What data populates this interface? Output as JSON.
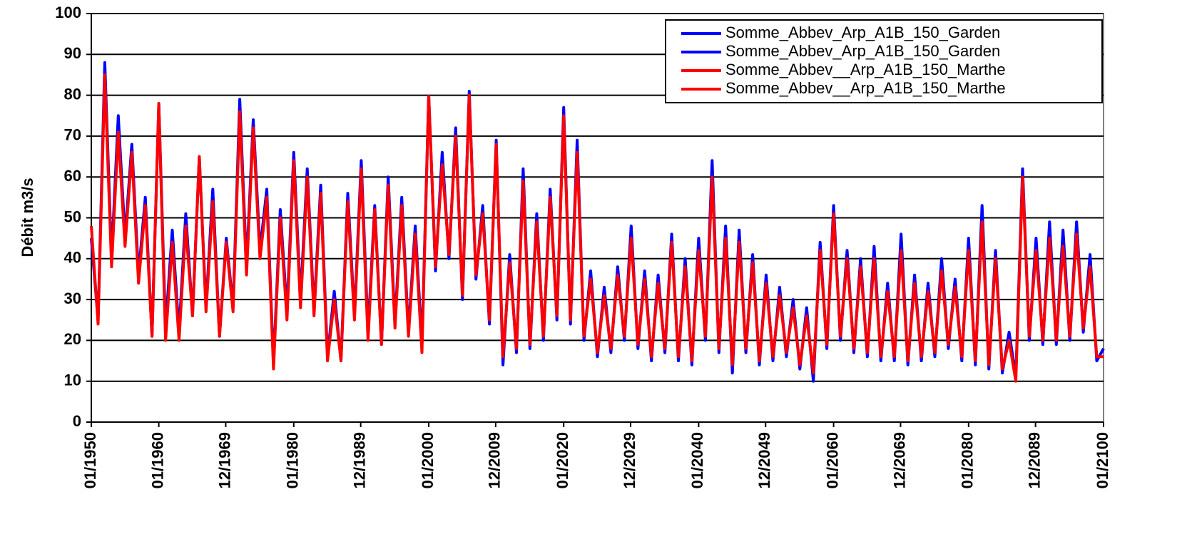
{
  "chart_data": {
    "type": "line",
    "ylabel": "Débit m3/s",
    "ylim": [
      0,
      100
    ],
    "yticks": [
      0,
      10,
      20,
      30,
      40,
      50,
      60,
      70,
      80,
      90,
      100
    ],
    "xlim": [
      1950,
      2100
    ],
    "xticks": [
      {
        "value": 1950,
        "label": "01/1950"
      },
      {
        "value": 1960,
        "label": "01/1960"
      },
      {
        "value": 1969.92,
        "label": "12/1969"
      },
      {
        "value": 1980,
        "label": "01/1980"
      },
      {
        "value": 1989.92,
        "label": "12/1989"
      },
      {
        "value": 2000,
        "label": "01/2000"
      },
      {
        "value": 2009.92,
        "label": "12/2009"
      },
      {
        "value": 2020,
        "label": "01/2020"
      },
      {
        "value": 2029.92,
        "label": "12/2029"
      },
      {
        "value": 2040,
        "label": "01/2040"
      },
      {
        "value": 2049.92,
        "label": "12/2049"
      },
      {
        "value": 2060,
        "label": "01/2060"
      },
      {
        "value": 2069.92,
        "label": "12/2069"
      },
      {
        "value": 2080,
        "label": "01/2080"
      },
      {
        "value": 2089.92,
        "label": "12/2089"
      },
      {
        "value": 2100,
        "label": "01/2100"
      }
    ],
    "grid": true,
    "legend": "upper right",
    "series": [
      {
        "name": "Somme_Abbev_Arp_A1B_150_Garden",
        "color": "#0000ff",
        "x": [
          1950,
          1951,
          1952,
          1953,
          1954,
          1955,
          1956,
          1957,
          1958,
          1959,
          1960,
          1961,
          1962,
          1963,
          1964,
          1965,
          1966,
          1967,
          1968,
          1969,
          1970,
          1971,
          1972,
          1973,
          1974,
          1975,
          1976,
          1977,
          1978,
          1979,
          1980,
          1981,
          1982,
          1983,
          1984,
          1985,
          1986,
          1987,
          1988,
          1989,
          1990,
          1991,
          1992,
          1993,
          1994,
          1995,
          1996,
          1997,
          1998,
          1999,
          2000
        ],
        "values": [
          45,
          25,
          88,
          40,
          75,
          45,
          68,
          36,
          55,
          21,
          78,
          23,
          47,
          22,
          51,
          26,
          65,
          28,
          57,
          21,
          45,
          28,
          79,
          38,
          74,
          42,
          57,
          14,
          52,
          27,
          66,
          30,
          62,
          27,
          58,
          16,
          32,
          15,
          56,
          26,
          64,
          22,
          53,
          19,
          60,
          24,
          55,
          22,
          48,
          19,
          80
        ]
      },
      {
        "name": "Somme_Abbev_Arp_A1B_150_Garden",
        "color": "#0000ff",
        "x": [
          2000,
          2001,
          2002,
          2003,
          2004,
          2005,
          2006,
          2007,
          2008,
          2009,
          2010,
          2011,
          2012,
          2013,
          2014,
          2015,
          2016,
          2017,
          2018,
          2019,
          2020,
          2021,
          2022,
          2023,
          2024,
          2025,
          2026,
          2027,
          2028,
          2029,
          2030,
          2031,
          2032,
          2033,
          2034,
          2035,
          2036,
          2037,
          2038,
          2039,
          2040,
          2041,
          2042,
          2043,
          2044,
          2045,
          2046,
          2047,
          2048,
          2049,
          2050,
          2051,
          2052,
          2053,
          2054,
          2055,
          2056,
          2057,
          2058,
          2059,
          2060,
          2061,
          2062,
          2063,
          2064,
          2065,
          2066,
          2067,
          2068,
          2069,
          2070,
          2071,
          2072,
          2073,
          2074,
          2075,
          2076,
          2077,
          2078,
          2079,
          2080,
          2081,
          2082,
          2083,
          2084,
          2085,
          2086,
          2087,
          2088,
          2089,
          2090,
          2091,
          2092,
          2093,
          2094,
          2095,
          2096,
          2097,
          2098,
          2099,
          2100
        ],
        "values": [
          80,
          37,
          66,
          40,
          72,
          30,
          81,
          35,
          53,
          24,
          69,
          14,
          41,
          17,
          62,
          18,
          51,
          20,
          57,
          25,
          77,
          24,
          69,
          20,
          37,
          16,
          33,
          17,
          38,
          20,
          48,
          18,
          37,
          15,
          36,
          17,
          46,
          15,
          40,
          14,
          45,
          20,
          64,
          17,
          48,
          12,
          47,
          17,
          41,
          14,
          36,
          15,
          33,
          16,
          30,
          13,
          28,
          10,
          44,
          18,
          53,
          20,
          42,
          17,
          40,
          16,
          43,
          15,
          34,
          15,
          46,
          14,
          36,
          15,
          34,
          16,
          40,
          18,
          35,
          15,
          45,
          14,
          53,
          13,
          42,
          12,
          22,
          11,
          62,
          20,
          45,
          19,
          49,
          19,
          47,
          20,
          49,
          22,
          41,
          15,
          18
        ]
      },
      {
        "name": "Somme_Abbev__Arp_A1B_150_Marthe",
        "color": "#ff0000",
        "x": [
          1950,
          1951,
          1952,
          1953,
          1954,
          1955,
          1956,
          1957,
          1958,
          1959,
          1960,
          1961,
          1962,
          1963,
          1964,
          1965,
          1966,
          1967,
          1968,
          1969,
          1970,
          1971,
          1972,
          1973,
          1974,
          1975,
          1976,
          1977,
          1978,
          1979,
          1980,
          1981,
          1982,
          1983,
          1984,
          1985,
          1986,
          1987,
          1988,
          1989,
          1990,
          1991,
          1992,
          1993,
          1994,
          1995,
          1996,
          1997,
          1998,
          1999,
          2000
        ],
        "values": [
          48,
          24,
          85,
          38,
          71,
          43,
          66,
          34,
          53,
          21,
          78,
          20,
          44,
          20,
          48,
          26,
          65,
          27,
          54,
          21,
          44,
          27,
          76,
          36,
          72,
          40,
          55,
          13,
          50,
          25,
          64,
          28,
          60,
          26,
          56,
          15,
          30,
          15,
          54,
          25,
          62,
          20,
          52,
          19,
          58,
          23,
          53,
          21,
          46,
          17,
          80
        ]
      },
      {
        "name": "Somme_Abbev__Arp_A1B_150_Marthe",
        "color": "#ff0000",
        "x": [
          2000,
          2001,
          2002,
          2003,
          2004,
          2005,
          2006,
          2007,
          2008,
          2009,
          2010,
          2011,
          2012,
          2013,
          2014,
          2015,
          2016,
          2017,
          2018,
          2019,
          2020,
          2021,
          2022,
          2023,
          2024,
          2025,
          2026,
          2027,
          2028,
          2029,
          2030,
          2031,
          2032,
          2033,
          2034,
          2035,
          2036,
          2037,
          2038,
          2039,
          2040,
          2041,
          2042,
          2043,
          2044,
          2045,
          2046,
          2047,
          2048,
          2049,
          2050,
          2051,
          2052,
          2053,
          2054,
          2055,
          2056,
          2057,
          2058,
          2059,
          2060,
          2061,
          2062,
          2063,
          2064,
          2065,
          2066,
          2067,
          2068,
          2069,
          2070,
          2071,
          2072,
          2073,
          2074,
          2075,
          2076,
          2077,
          2078,
          2079,
          2080,
          2081,
          2082,
          2083,
          2084,
          2085,
          2086,
          2087,
          2088,
          2089,
          2090,
          2091,
          2092,
          2093,
          2094,
          2095,
          2096,
          2097,
          2098,
          2099,
          2100
        ],
        "values": [
          80,
          38,
          63,
          41,
          70,
          31,
          80,
          36,
          51,
          25,
          68,
          16,
          39,
          18,
          59,
          19,
          49,
          21,
          55,
          26,
          75,
          25,
          66,
          21,
          35,
          17,
          31,
          18,
          36,
          21,
          45,
          19,
          35,
          16,
          34,
          18,
          44,
          16,
          38,
          15,
          42,
          21,
          60,
          18,
          45,
          14,
          44,
          18,
          39,
          15,
          34,
          16,
          31,
          17,
          28,
          14,
          26,
          12,
          42,
          19,
          51,
          21,
          40,
          18,
          38,
          17,
          40,
          16,
          32,
          16,
          42,
          15,
          34,
          16,
          32,
          17,
          37,
          19,
          33,
          16,
          42,
          15,
          49,
          14,
          40,
          13,
          20,
          10,
          60,
          21,
          42,
          20,
          45,
          20,
          43,
          21,
          46,
          23,
          38,
          16,
          16
        ]
      }
    ]
  }
}
